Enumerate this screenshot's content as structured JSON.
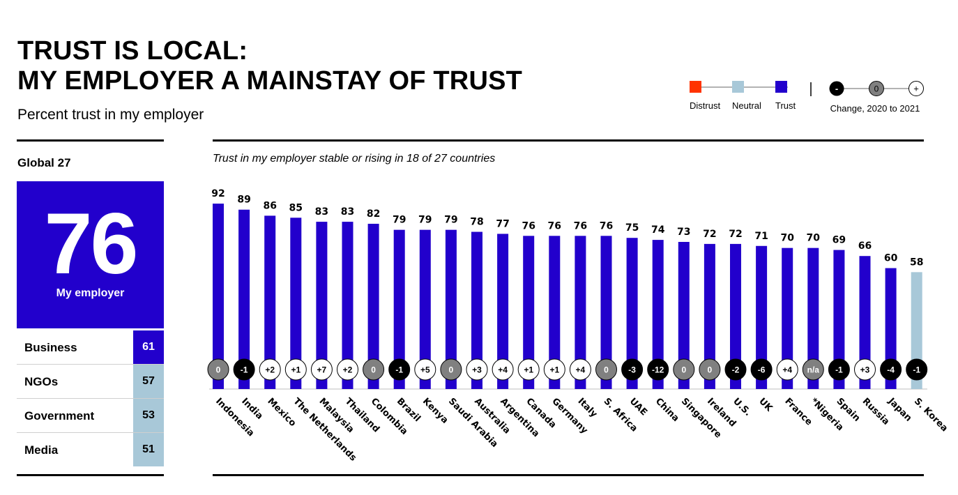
{
  "header": {
    "title_line1": "TRUST IS LOCAL:",
    "title_line2": "MY EMPLOYER A MAINSTAY OF TRUST",
    "subtitle": "Percent trust in my employer"
  },
  "legend": {
    "distrust_label": "Distrust",
    "neutral_label": "Neutral",
    "trust_label": "Trust",
    "change_label": "Change, 2020 to 2021",
    "minus_symbol": "-",
    "zero_symbol": "0",
    "plus_symbol": "+",
    "colors": {
      "distrust": "#ff3300",
      "neutral": "#a8c8d8",
      "trust": "#2200cc"
    }
  },
  "global": {
    "label": "Global 27",
    "score": "76",
    "score_label": "My employer",
    "institutions": [
      {
        "name": "Business",
        "value": "61",
        "color": "#2200cc",
        "text_color": "#ffffff"
      },
      {
        "name": "NGOs",
        "value": "57",
        "color": "#a8c8d8",
        "text_color": "#000000"
      },
      {
        "name": "Government",
        "value": "53",
        "color": "#a8c8d8",
        "text_color": "#000000"
      },
      {
        "name": "Media",
        "value": "51",
        "color": "#a8c8d8",
        "text_color": "#000000"
      }
    ]
  },
  "note": "Trust in my employer stable or rising in 18 of 27 countries",
  "chart_data": {
    "type": "bar",
    "categories": [
      "Indonesia",
      "India",
      "Mexico",
      "The Netherlands",
      "Malaysia",
      "Thailand",
      "Colombia",
      "Brazil",
      "Kenya",
      "Saudi Arabia",
      "Australia",
      "Argentina",
      "Canada",
      "Germany",
      "Italy",
      "S. Africa",
      "UAE",
      "China",
      "Singapore",
      "Ireland",
      "U.S.",
      "UK",
      "France",
      "*Nigeria",
      "Spain",
      "Russia",
      "Japan",
      "S. Korea"
    ],
    "values": [
      92,
      89,
      86,
      85,
      83,
      83,
      82,
      79,
      79,
      79,
      78,
      77,
      76,
      76,
      76,
      76,
      75,
      74,
      73,
      72,
      72,
      71,
      70,
      70,
      69,
      66,
      60,
      58
    ],
    "changes": [
      "0",
      "-1",
      "+2",
      "+1",
      "+7",
      "+2",
      "0",
      "-1",
      "+5",
      "0",
      "+3",
      "+4",
      "+1",
      "+1",
      "+4",
      "0",
      "-3",
      "-12",
      "0",
      "0",
      "-2",
      "-6",
      "+4",
      "n/a",
      "-1",
      "+3",
      "-4",
      "-1"
    ],
    "bar_colors": [
      "#2200cc",
      "#2200cc",
      "#2200cc",
      "#2200cc",
      "#2200cc",
      "#2200cc",
      "#2200cc",
      "#2200cc",
      "#2200cc",
      "#2200cc",
      "#2200cc",
      "#2200cc",
      "#2200cc",
      "#2200cc",
      "#2200cc",
      "#2200cc",
      "#2200cc",
      "#2200cc",
      "#2200cc",
      "#2200cc",
      "#2200cc",
      "#2200cc",
      "#2200cc",
      "#2200cc",
      "#2200cc",
      "#2200cc",
      "#2200cc",
      "#a8c8d8"
    ],
    "change_colors": {
      "negative": "#000000",
      "zero": "#808080",
      "positive": "#ffffff",
      "na": "#808080"
    },
    "ylim": [
      0,
      100
    ],
    "title": "",
    "xlabel": "",
    "ylabel": "",
    "grid": false,
    "legend_position": "top-right"
  }
}
